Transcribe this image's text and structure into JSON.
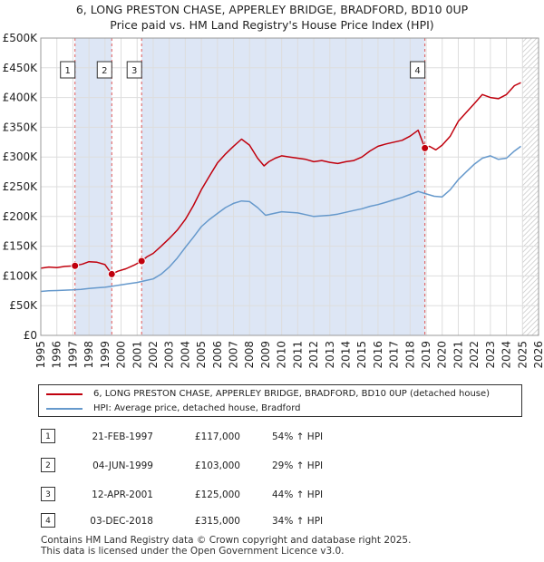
{
  "header": {
    "title": "6, LONG PRESTON CHASE, APPERLEY BRIDGE, BRADFORD, BD10 0UP",
    "subtitle": "Price paid vs. HM Land Registry's House Price Index (HPI)"
  },
  "colors": {
    "property": "#c0000d",
    "hpi": "#6699cc",
    "marker_line": "#e05a5a",
    "highlight": "#dde6f5"
  },
  "chart_data": {
    "type": "line",
    "title": "6, LONG PRESTON CHASE, APPERLEY BRIDGE, BRADFORD, BD10 0UP",
    "x_range": [
      1995,
      2026
    ],
    "y_range": [
      0,
      500000
    ],
    "x_ticks": [
      "1995",
      "1996",
      "1997",
      "1998",
      "1999",
      "2000",
      "2001",
      "2002",
      "2003",
      "2004",
      "2005",
      "2006",
      "2007",
      "2008",
      "2009",
      "2010",
      "2011",
      "2012",
      "2013",
      "2014",
      "2015",
      "2016",
      "2017",
      "2018",
      "2019",
      "2020",
      "2021",
      "2022",
      "2023",
      "2024",
      "2025",
      "2026"
    ],
    "y_ticks": [
      {
        "value": 0,
        "label": "£0"
      },
      {
        "value": 50000,
        "label": "£50K"
      },
      {
        "value": 100000,
        "label": "£100K"
      },
      {
        "value": 150000,
        "label": "£150K"
      },
      {
        "value": 200000,
        "label": "£200K"
      },
      {
        "value": 250000,
        "label": "£250K"
      },
      {
        "value": 300000,
        "label": "£300K"
      },
      {
        "value": 350000,
        "label": "£350K"
      },
      {
        "value": 400000,
        "label": "£400K"
      },
      {
        "value": 450000,
        "label": "£450K"
      },
      {
        "value": 500000,
        "label": "£500K"
      }
    ],
    "grid": true,
    "highlight_bands": [
      [
        1997.13,
        1999.42
      ],
      [
        2001.28,
        2018.92
      ]
    ],
    "future_hatch_from": 2025.0,
    "series": [
      {
        "name": "6, LONG PRESTON CHASE, APPERLEY BRIDGE, BRADFORD, BD10 0UP (detached house)",
        "x": [
          1995.0,
          1995.5,
          1996.0,
          1996.5,
          1997.13,
          1997.6,
          1998.0,
          1998.5,
          1999.0,
          1999.42,
          1999.8,
          2000.3,
          2000.8,
          2001.28,
          2001.6,
          2002.0,
          2002.5,
          2003.0,
          2003.5,
          2004.0,
          2004.5,
          2005.0,
          2005.5,
          2006.0,
          2006.5,
          2007.0,
          2007.5,
          2008.0,
          2008.5,
          2008.9,
          2009.2,
          2009.6,
          2010.0,
          2010.5,
          2011.0,
          2011.5,
          2012.0,
          2012.5,
          2013.0,
          2013.5,
          2014.0,
          2014.5,
          2015.0,
          2015.5,
          2016.0,
          2016.5,
          2017.0,
          2017.5,
          2018.0,
          2018.5,
          2018.92,
          2019.2,
          2019.6,
          2020.0,
          2020.5,
          2021.0,
          2021.5,
          2022.0,
          2022.5,
          2023.0,
          2023.5,
          2024.0,
          2024.5,
          2024.9
        ],
        "values": [
          113000,
          115000,
          114000,
          116000,
          117000,
          120000,
          124000,
          123000,
          119000,
          103000,
          108000,
          112000,
          118000,
          125000,
          132000,
          138000,
          150000,
          163000,
          177000,
          195000,
          218000,
          245000,
          268000,
          290000,
          305000,
          318000,
          330000,
          320000,
          298000,
          285000,
          292000,
          298000,
          302000,
          300000,
          298000,
          296000,
          292000,
          294000,
          291000,
          289000,
          292000,
          294000,
          300000,
          310000,
          318000,
          322000,
          325000,
          328000,
          335000,
          345000,
          315000,
          318000,
          312000,
          320000,
          335000,
          360000,
          375000,
          390000,
          405000,
          400000,
          398000,
          405000,
          420000,
          425000
        ]
      },
      {
        "name": "HPI: Average price, detached house, Bradford",
        "x": [
          1995.0,
          1995.5,
          1996.0,
          1996.5,
          1997.0,
          1997.5,
          1998.0,
          1998.5,
          1999.0,
          1999.5,
          2000.0,
          2000.5,
          2001.0,
          2001.5,
          2002.0,
          2002.5,
          2003.0,
          2003.5,
          2004.0,
          2004.5,
          2005.0,
          2005.5,
          2006.0,
          2006.5,
          2007.0,
          2007.5,
          2008.0,
          2008.5,
          2009.0,
          2009.5,
          2010.0,
          2010.5,
          2011.0,
          2011.5,
          2012.0,
          2012.5,
          2013.0,
          2013.5,
          2014.0,
          2014.5,
          2015.0,
          2015.5,
          2016.0,
          2016.5,
          2017.0,
          2017.5,
          2018.0,
          2018.5,
          2019.0,
          2019.5,
          2020.0,
          2020.5,
          2021.0,
          2021.5,
          2022.0,
          2022.5,
          2023.0,
          2023.5,
          2024.0,
          2024.5,
          2024.9
        ],
        "values": [
          74000,
          75000,
          75500,
          76000,
          76500,
          77500,
          79000,
          80000,
          81000,
          83000,
          85000,
          87000,
          89000,
          92000,
          95000,
          103000,
          115000,
          130000,
          148000,
          165000,
          183000,
          195000,
          205000,
          215000,
          222000,
          226000,
          225000,
          215000,
          202000,
          205000,
          208000,
          207000,
          206000,
          203000,
          200000,
          201000,
          202000,
          204000,
          207000,
          210000,
          213000,
          217000,
          220000,
          224000,
          228000,
          232000,
          237000,
          242000,
          238000,
          234000,
          233000,
          245000,
          262000,
          275000,
          288000,
          298000,
          302000,
          296000,
          298000,
          310000,
          318000
        ]
      }
    ],
    "sales": [
      {
        "id": "1",
        "x": 1997.13,
        "value": 117000
      },
      {
        "id": "2",
        "x": 1999.42,
        "value": 103000
      },
      {
        "id": "3",
        "x": 2001.28,
        "value": 125000
      },
      {
        "id": "4",
        "x": 2018.92,
        "value": 315000
      }
    ]
  },
  "legend": {
    "property_label": "6, LONG PRESTON CHASE, APPERLEY BRIDGE, BRADFORD, BD10 0UP (detached house)",
    "hpi_label": "HPI: Average price, detached house, Bradford"
  },
  "table": {
    "rows": [
      {
        "num": "1",
        "date": "21-FEB-1997",
        "price": "£117,000",
        "hpi": "54% ↑ HPI"
      },
      {
        "num": "2",
        "date": "04-JUN-1999",
        "price": "£103,000",
        "hpi": "29% ↑ HPI"
      },
      {
        "num": "3",
        "date": "12-APR-2001",
        "price": "£125,000",
        "hpi": "44% ↑ HPI"
      },
      {
        "num": "4",
        "date": "03-DEC-2018",
        "price": "£315,000",
        "hpi": "34% ↑ HPI"
      }
    ]
  },
  "footer": {
    "line1": "Contains HM Land Registry data © Crown copyright and database right 2025.",
    "line2": "This data is licensed under the Open Government Licence v3.0."
  }
}
